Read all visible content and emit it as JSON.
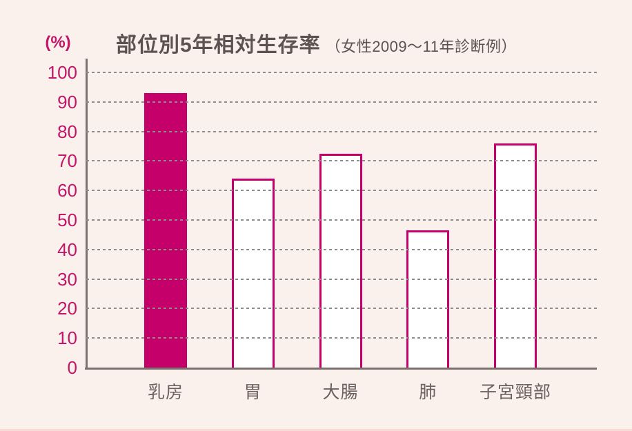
{
  "chart_data": {
    "type": "bar",
    "title": "部位別5年相対生存率",
    "subtitle": "（女性2009〜11年診断例）",
    "unit_label": "(%)",
    "categories": [
      "乳房",
      "胃",
      "大腸",
      "肺",
      "子宮頸部"
    ],
    "values": [
      93,
      64,
      72.5,
      46.5,
      76
    ],
    "highlighted_category": "乳房",
    "highlight_index": 0,
    "xlabel": "",
    "ylabel": "(%)",
    "ylim": [
      0,
      100
    ],
    "yticks": [
      0,
      10,
      20,
      30,
      40,
      50,
      60,
      70,
      80,
      90,
      100
    ],
    "grid": "dotted-horizontal",
    "legend": "none",
    "colors": {
      "background": "#fbf1ec",
      "highlight_bar_fill": "#c5006a",
      "bar_outline": "#c5006a",
      "bar_fill": "#ffffff",
      "axis_tick_text": "#c31669",
      "title_text": "#5d5251",
      "category_text": "#6d605e",
      "gridline": "#8d8d8d",
      "axis_line": "#7a716f"
    }
  }
}
